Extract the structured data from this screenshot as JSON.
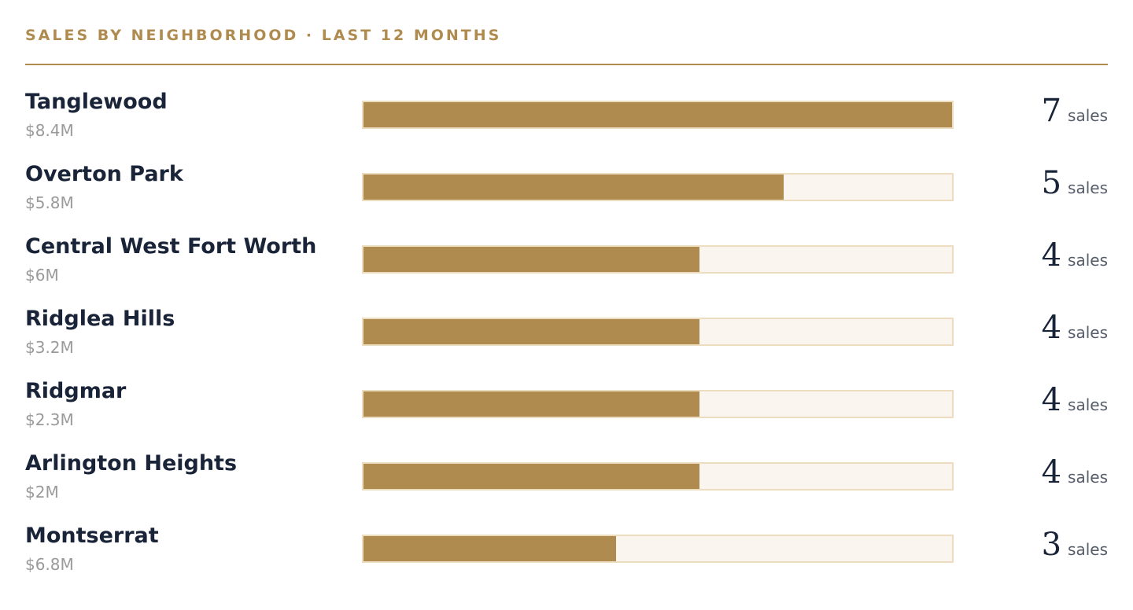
{
  "header": {
    "title": "SALES BY NEIGHBORHOOD · LAST 12 MONTHS"
  },
  "colors": {
    "accent": "#b08b4f",
    "track": "#faf6ef",
    "track_border": "#ecdcc0",
    "name_text": "#1a2438",
    "amount_text": "#9a9a9a"
  },
  "chart_data": {
    "type": "bar",
    "title": "SALES BY NEIGHBORHOOD · LAST 12 MONTHS",
    "orientation": "horizontal",
    "unit_label": "sales",
    "xlim": [
      0,
      7
    ],
    "categories": [
      "Tanglewood",
      "Overton Park",
      "Central West Fort Worth",
      "Ridglea Hills",
      "Ridgmar",
      "Arlington Heights",
      "Montserrat"
    ],
    "values": [
      7,
      5,
      4,
      4,
      4,
      4,
      3
    ],
    "volumes": [
      "$8.4M",
      "$5.8M",
      "$6M",
      "$3.2M",
      "$2.3M",
      "$2M",
      "$6.8M"
    ],
    "grid": false
  }
}
